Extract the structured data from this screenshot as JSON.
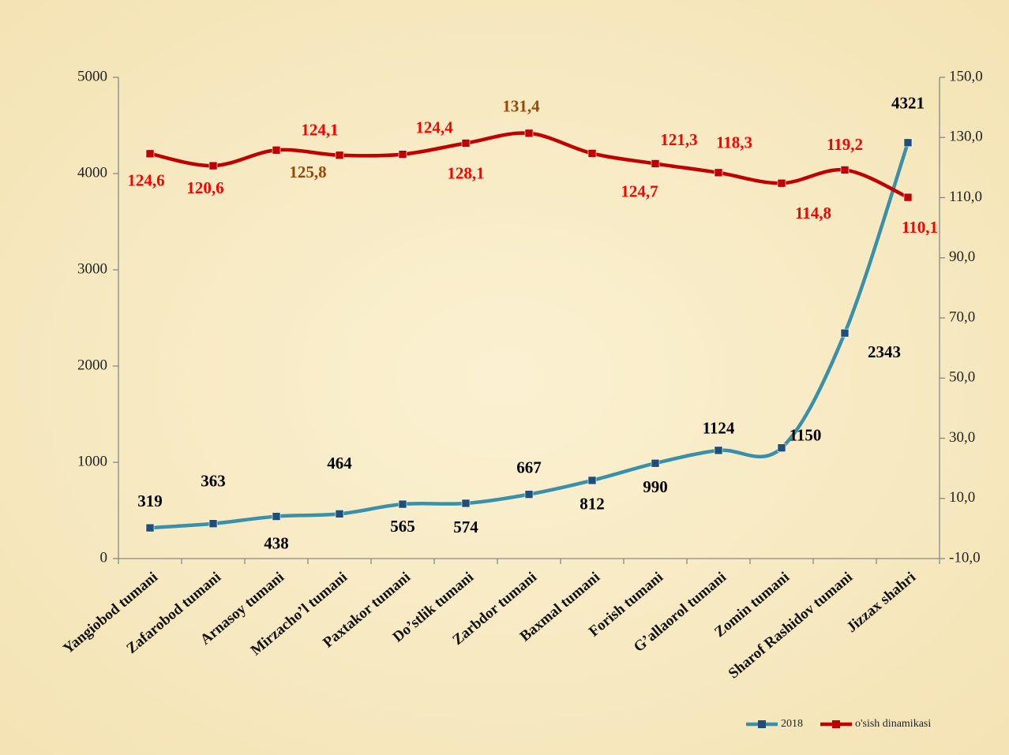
{
  "chart_data": {
    "type": "line",
    "categories": [
      "Yangiobod tumani",
      "Zafarobod tumani",
      "Arnasoy tumani",
      "Mirzacho’l tumani",
      "Paxtakor tumani",
      "Do’stlik tumani",
      "Zarbdor tumani",
      "Baxmal tumani",
      "Forish tumani",
      "G’allaorol tumani",
      "Zomin tumani",
      "Sharof Rashidov tumani",
      "Jizzax shahri"
    ],
    "series": [
      {
        "name": "2018",
        "color": "#3a90a8",
        "marker_color": "#1f4e79",
        "label_color": "#000000",
        "values": [
          319,
          363,
          438,
          464,
          565,
          574,
          667,
          812,
          990,
          1124,
          1150,
          2343,
          4321
        ]
      },
      {
        "name": "o'sish dinamikasi",
        "color": "#c00000",
        "marker_color": "#c00000",
        "axis": "y2",
        "label_colors": [
          "#ff0000",
          "#ff0000",
          "#984806",
          "#ff0000",
          "#ff0000",
          "#ff0000",
          "#984806",
          "#ff0000",
          "#ff0000",
          "#ff0000",
          "#ff0000",
          "#ff0000",
          "#ff0000"
        ],
        "values": [
          124.6,
          120.6,
          125.8,
          124.1,
          124.4,
          128.1,
          131.4,
          124.7,
          121.3,
          118.3,
          114.8,
          119.2,
          110.1
        ],
        "value_labels": [
          "124,6",
          "120,6",
          "125,8",
          "124,1",
          "124,4",
          "128,1",
          "131,4",
          "124,7",
          "121,3",
          "118,3",
          "114,8",
          "119,2",
          "110,1"
        ]
      }
    ],
    "ylim": [
      0,
      5000
    ],
    "yticks": [
      0,
      1000,
      2000,
      3000,
      4000,
      5000
    ],
    "y2lim": [
      -10,
      150
    ],
    "y2ticks": [
      {
        "value": -10,
        "label": "-10,0"
      },
      {
        "value": 10,
        "label": "10,0"
      },
      {
        "value": 30,
        "label": "30,0"
      },
      {
        "value": 50,
        "label": "50,0"
      },
      {
        "value": 70,
        "label": "70,0"
      },
      {
        "value": 90,
        "label": "90,0"
      },
      {
        "value": 110,
        "label": "110,0"
      },
      {
        "value": 130,
        "label": "130,0"
      },
      {
        "value": 150,
        "label": "150,0"
      }
    ],
    "legend": "bottom-right",
    "grid": false
  }
}
